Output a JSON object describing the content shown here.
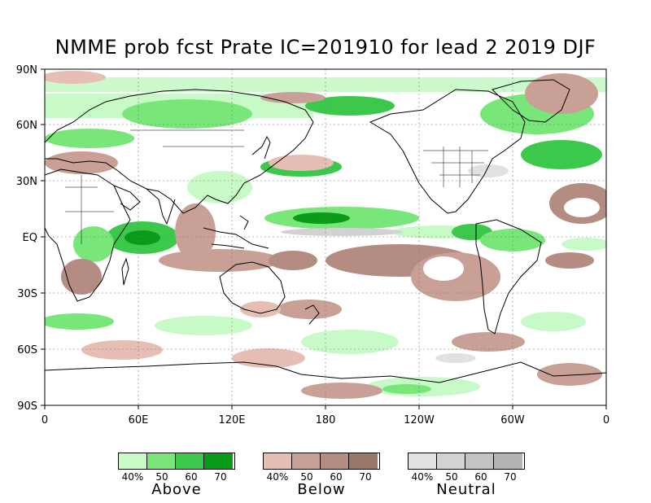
{
  "title": "NMME prob fcst Prate IC=201910 for lead 2 2019 DJF",
  "lat_labels": [
    "90N",
    "60N",
    "30N",
    "30S",
    "60S",
    "90S"
  ],
  "eq_label": "EQ",
  "lon_labels": [
    "0",
    "60E",
    "120E",
    "180",
    "120W",
    "60W",
    "0"
  ],
  "legends": [
    {
      "name": "Above",
      "ticks": [
        "40%",
        "50",
        "60",
        "70"
      ],
      "colors": [
        "#c8fac8",
        "#78e678",
        "#3cc84b",
        "#0a9b19"
      ]
    },
    {
      "name": "Below",
      "ticks": [
        "40%",
        "50",
        "60",
        "70"
      ],
      "colors": [
        "#e6beb4",
        "#c8a096",
        "#b48c82",
        "#9b7869"
      ]
    },
    {
      "name": "Neutral",
      "ticks": [
        "40%",
        "50",
        "60",
        "70"
      ],
      "colors": [
        "#e1e1e1",
        "#d2d2d2",
        "#c3c3c3",
        "#b4b4b4"
      ]
    }
  ]
}
